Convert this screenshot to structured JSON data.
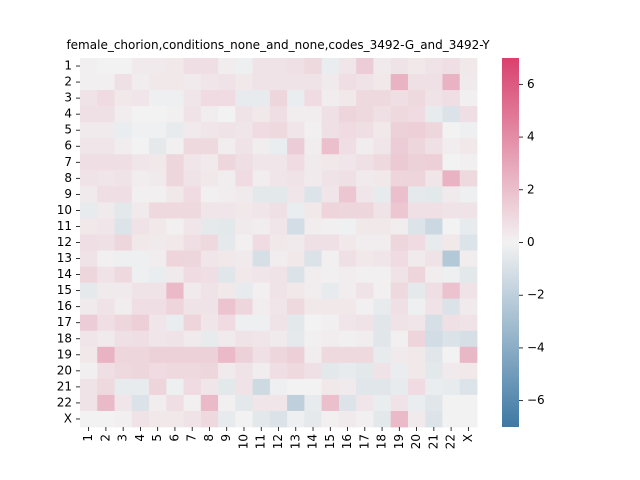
{
  "chart_data": {
    "type": "heatmap",
    "title": "female_chorion,conditions_none_and_none,codes_3492-G_and_3492-Y",
    "xlabel": "",
    "ylabel": "",
    "x_categories": [
      "1",
      "2",
      "3",
      "4",
      "5",
      "6",
      "7",
      "8",
      "9",
      "10",
      "11",
      "12",
      "13",
      "14",
      "15",
      "16",
      "17",
      "18",
      "19",
      "20",
      "21",
      "22",
      "X"
    ],
    "y_categories": [
      "1",
      "2",
      "3",
      "4",
      "5",
      "6",
      "7",
      "8",
      "9",
      "10",
      "11",
      "12",
      "13",
      "14",
      "15",
      "16",
      "17",
      "18",
      "19",
      "20",
      "21",
      "22",
      "X"
    ],
    "colorbar": {
      "vmin": -7,
      "vmax": 7,
      "ticks": [
        -6,
        -4,
        -2,
        0,
        2,
        4,
        6
      ],
      "colors": {
        "low": "#3e79a4",
        "mid": "#f2f2f2",
        "high": "#d8416d"
      }
    },
    "values": [
      [
        0.1,
        0.0,
        0.0,
        0.3,
        0.3,
        0.4,
        0.8,
        0.8,
        0.2,
        -0.2,
        0.6,
        0.6,
        0.7,
        1.0,
        -0.3,
        0.5,
        1.5,
        0.3,
        0.6,
        0.4,
        0.6,
        0.8,
        0.4
      ],
      [
        0.1,
        0.1,
        0.7,
        0.2,
        0.4,
        0.4,
        0.3,
        0.5,
        0.6,
        0.4,
        0.6,
        0.6,
        0.6,
        0.6,
        0.3,
        0.8,
        0.6,
        0.4,
        2.5,
        0.7,
        0.7,
        2.5,
        0.3
      ],
      [
        0.6,
        0.9,
        0.4,
        0.5,
        -0.2,
        -0.2,
        0.5,
        0.9,
        0.9,
        -0.4,
        -0.4,
        1.1,
        -0.3,
        0.9,
        0.2,
        0.4,
        1.0,
        1.0,
        0.8,
        1.0,
        0.6,
        0.8,
        0.1
      ],
      [
        0.7,
        0.7,
        0.2,
        0.0,
        0.0,
        0.1,
        0.6,
        0.2,
        0.0,
        0.6,
        0.4,
        0.8,
        0.2,
        0.2,
        0.7,
        1.2,
        1.0,
        0.7,
        1.0,
        0.9,
        -0.4,
        -0.9,
        0.8
      ],
      [
        0.3,
        0.3,
        -0.3,
        -0.1,
        -0.1,
        -0.4,
        0.3,
        0.5,
        0.6,
        0.5,
        0.9,
        1.0,
        0.5,
        0.1,
        0.7,
        0.9,
        0.8,
        0.4,
        1.3,
        1.4,
        1.1,
        0.0,
        -0.2
      ],
      [
        0.5,
        0.5,
        0.2,
        0.0,
        -0.5,
        0.1,
        1.0,
        1.0,
        0.2,
        0.6,
        0.2,
        -0.3,
        1.5,
        0.2,
        2.0,
        0.8,
        0.2,
        0.5,
        1.5,
        1.1,
        0.7,
        0.2,
        0.4
      ],
      [
        0.8,
        0.8,
        0.8,
        0.5,
        0.4,
        1.1,
        0.5,
        0.3,
        1.1,
        0.8,
        0.5,
        0.5,
        0.9,
        0.3,
        0.4,
        0.5,
        0.7,
        1.0,
        1.6,
        1.3,
        1.4,
        0.0,
        0.1
      ],
      [
        0.6,
        0.5,
        0.6,
        0.2,
        0.3,
        1.1,
        0.6,
        0.4,
        0.2,
        0.9,
        0.2,
        0.5,
        0.6,
        0.3,
        0.6,
        0.7,
        0.3,
        0.4,
        1.2,
        1.2,
        0.5,
        2.5,
        1.0
      ],
      [
        0.3,
        0.8,
        0.8,
        0.1,
        0.1,
        0.4,
        0.9,
        0.1,
        0.2,
        0.3,
        -0.6,
        -0.6,
        0.5,
        -0.8,
        0.5,
        1.7,
        0.5,
        -0.4,
        2.0,
        -0.5,
        -0.6,
        0.3,
        -0.2
      ],
      [
        -0.4,
        0.3,
        -0.6,
        0.3,
        1.0,
        1.0,
        1.0,
        0.5,
        0.5,
        0.4,
        0.5,
        0.7,
        -0.3,
        0.4,
        1.2,
        1.1,
        1.1,
        0.6,
        1.7,
        0.7,
        0.7,
        0.6,
        0.6
      ],
      [
        0.4,
        0.5,
        -0.8,
        0.6,
        0.4,
        0.1,
        0.5,
        -0.5,
        -0.6,
        0.3,
        0.2,
        0.5,
        -1.2,
        0.2,
        0.1,
        -0.1,
        0.4,
        0.4,
        0.2,
        -0.8,
        -1.5,
        0.0,
        -0.4
      ],
      [
        0.8,
        0.7,
        1.1,
        0.4,
        0.3,
        0.4,
        0.8,
        1.0,
        -0.5,
        0.1,
        0.9,
        0.4,
        0.3,
        0.7,
        0.7,
        0.4,
        0.2,
        0.2,
        1.1,
        0.9,
        -0.4,
        0.4,
        -0.8
      ],
      [
        0.6,
        0.1,
        -0.2,
        -0.2,
        0.2,
        1.2,
        1.1,
        0.5,
        0.4,
        0.3,
        -1.1,
        0.2,
        0.4,
        -0.9,
        0.1,
        0.7,
        0.4,
        0.5,
        0.9,
        0.3,
        0.6,
        -2.4,
        0.2
      ],
      [
        1.1,
        0.6,
        1.0,
        -0.2,
        -0.3,
        0.3,
        0.9,
        0.8,
        -0.7,
        0.4,
        0.5,
        0.6,
        -0.9,
        0.2,
        0.1,
        0.2,
        0.1,
        0.1,
        0.6,
        1.2,
        0.2,
        -0.2,
        -0.6
      ],
      [
        -0.5,
        0.3,
        0.3,
        0.6,
        0.6,
        2.2,
        0.3,
        0.6,
        0.4,
        -0.4,
        0.1,
        0.6,
        0.4,
        0.2,
        -0.4,
        0.2,
        0.6,
        0.1,
        1.0,
        -0.5,
        0.8,
        1.9,
        0.6
      ],
      [
        0.3,
        0.6,
        0.2,
        0.8,
        0.8,
        1.2,
        0.6,
        0.6,
        1.8,
        1.1,
        0.2,
        0.5,
        1.0,
        0.4,
        0.4,
        0.4,
        0.1,
        -0.4,
        0.7,
        -0.2,
        0.6,
        -0.9,
        0.3
      ],
      [
        1.5,
        0.8,
        1.1,
        1.4,
        0.5,
        -0.3,
        1.2,
        0.5,
        0.9,
        -0.2,
        -0.2,
        0.6,
        -0.6,
        0.0,
        0.1,
        0.5,
        0.6,
        -0.7,
        0.6,
        0.5,
        -1.1,
        0.7,
        0.6
      ],
      [
        0.5,
        0.3,
        0.7,
        0.8,
        0.5,
        0.6,
        0.3,
        -0.4,
        0.3,
        0.6,
        0.5,
        0.3,
        -0.5,
        0.1,
        0.2,
        0.1,
        0.2,
        -0.7,
        0.1,
        1.2,
        -1.3,
        -0.9,
        -1.1
      ],
      [
        0.4,
        2.5,
        1.1,
        1.1,
        1.3,
        1.3,
        1.3,
        1.3,
        2.2,
        1.3,
        0.7,
        1.1,
        1.4,
        0.2,
        1.0,
        1.0,
        1.0,
        -0.4,
        0.3,
        0.4,
        -0.7,
        0.0,
        2.3
      ],
      [
        0.1,
        0.8,
        1.0,
        1.1,
        0.9,
        1.0,
        1.0,
        1.1,
        0.3,
        0.6,
        0.2,
        0.8,
        1.0,
        0.7,
        -0.6,
        -0.4,
        -0.6,
        0.6,
        -0.3,
        0.4,
        -0.6,
        0.3,
        0.4
      ],
      [
        0.6,
        1.0,
        -0.4,
        -0.4,
        1.2,
        -0.2,
        0.9,
        0.5,
        -0.6,
        0.6,
        -1.4,
        -0.2,
        0.0,
        0.0,
        0.4,
        0.3,
        -0.7,
        -0.7,
        -0.4,
        0.9,
        -0.3,
        -0.4,
        -0.8
      ],
      [
        0.6,
        2.2,
        0.5,
        -0.9,
        0.2,
        0.8,
        0.1,
        2.2,
        0.1,
        -0.6,
        0.5,
        0.5,
        -2.0,
        -0.4,
        2.0,
        -0.8,
        0.5,
        -0.3,
        0.6,
        -0.3,
        -0.7,
        0.0,
        0.0
      ],
      [
        0.0,
        0.0,
        0.1,
        0.6,
        0.4,
        0.4,
        0.6,
        1.0,
        -0.4,
        0.0,
        -0.6,
        -0.9,
        -0.2,
        -0.5,
        0.1,
        0.3,
        0.1,
        -0.6,
        2.2,
        0.3,
        -0.8,
        0.0,
        0.0
      ]
    ]
  }
}
